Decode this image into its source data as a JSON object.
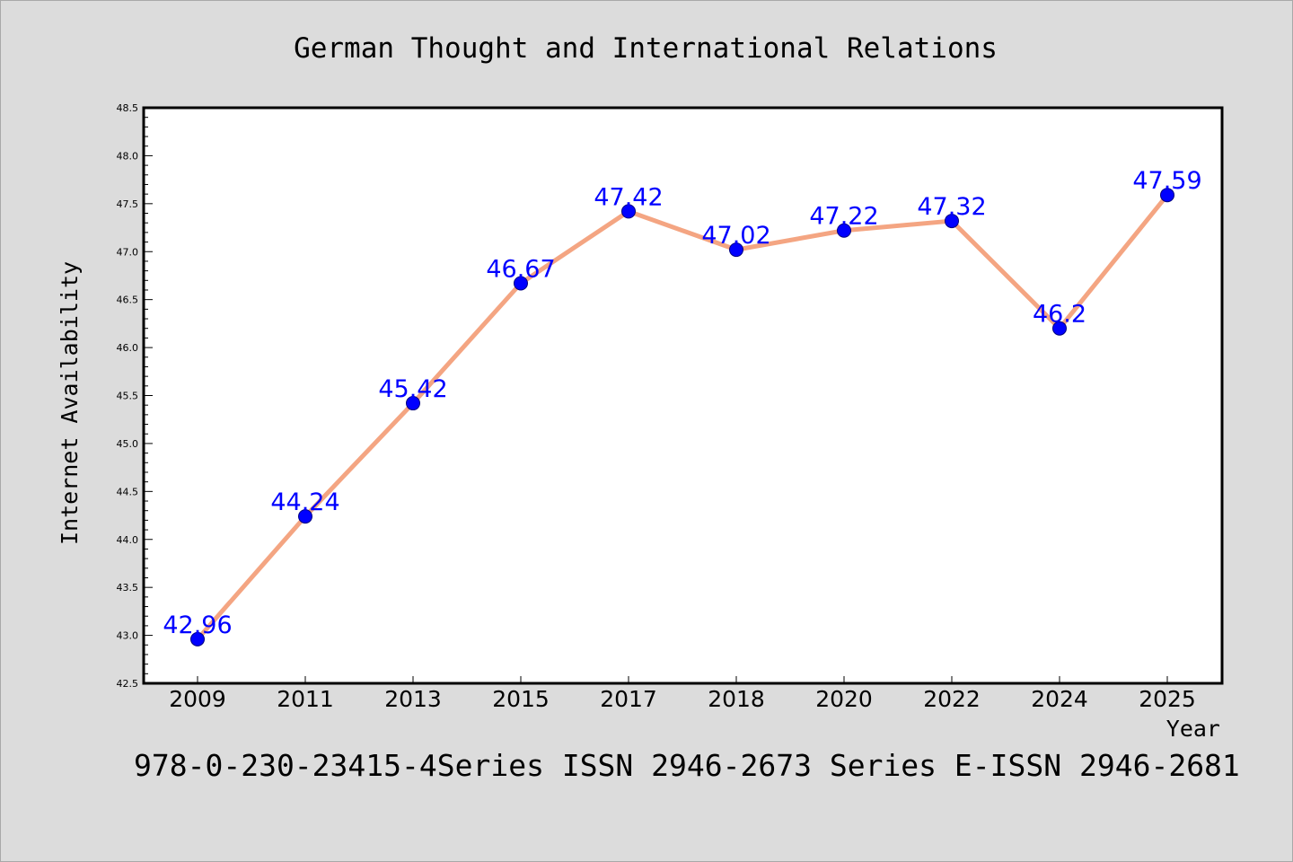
{
  "chart_data": {
    "type": "line",
    "title": "German Thought and International Relations",
    "xlabel": "Year",
    "ylabel": "Internet Availability",
    "categories": [
      "2009",
      "2011",
      "2013",
      "2015",
      "2017",
      "2018",
      "2020",
      "2022",
      "2024",
      "2025"
    ],
    "series": [
      {
        "values": [
          42.96,
          44.24,
          45.42,
          46.67,
          47.42,
          47.02,
          47.22,
          47.32,
          46.2,
          47.59
        ],
        "data_labels": [
          "42.96",
          "44.24",
          "45.42",
          "46.67",
          "47.42",
          "47.02",
          "47.22",
          "47.32",
          "46.2",
          "47.59"
        ],
        "line_color": "#f4a582",
        "marker_color": "#0000ff"
      }
    ],
    "y_ticks": [
      "42.5",
      "43.0",
      "43.5",
      "44.0",
      "44.5",
      "45.0",
      "45.5",
      "46.0",
      "46.5",
      "47.0",
      "47.5",
      "48.0",
      "48.5"
    ],
    "ylim": [
      42.5,
      48.5
    ],
    "grid": false,
    "legend": "none",
    "caption": "978-0-230-23415-4Series ISSN 2946-2673 Series E-ISSN 2946-2681",
    "colors": {
      "background": "#dcdcdc",
      "plot_background": "#ffffff",
      "line": "#f4a582",
      "marker": "#0000ff",
      "data_label": "#0000ff"
    }
  }
}
